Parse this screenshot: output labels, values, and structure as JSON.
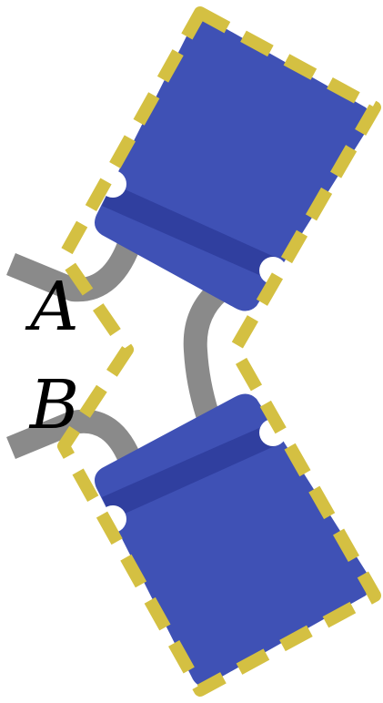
{
  "labels": {
    "terminal_a": "A",
    "terminal_b": "B"
  },
  "colors": {
    "block_fill": "#3f51b5",
    "block_stripe": "#303f9f",
    "wire": "#8a8a8a",
    "dashed_outline": "#d4c042",
    "label_text": "#000000",
    "background": "#ffffff"
  },
  "components": [
    {
      "name": "upper-block",
      "kind": "blue-block"
    },
    {
      "name": "lower-block",
      "kind": "blue-block"
    }
  ]
}
